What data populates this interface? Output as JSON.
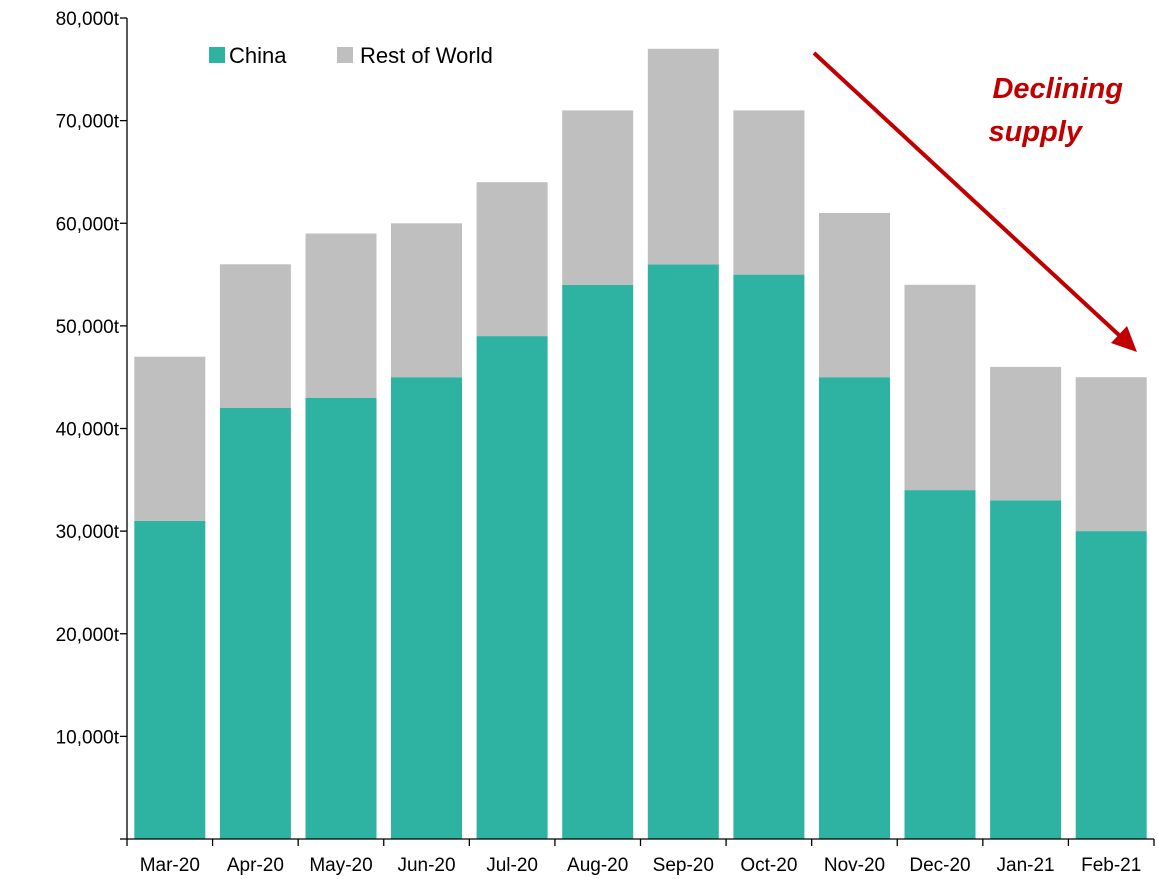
{
  "chart_data": {
    "type": "bar",
    "stacked": true,
    "categories": [
      "Mar-20",
      "Apr-20",
      "May-20",
      "Jun-20",
      "Jul-20",
      "Aug-20",
      "Sep-20",
      "Oct-20",
      "Nov-20",
      "Dec-20",
      "Jan-21",
      "Feb-21"
    ],
    "series": [
      {
        "name": "China",
        "color": "#2eb3a3",
        "values": [
          31000,
          42000,
          43000,
          45000,
          49000,
          54000,
          56000,
          55000,
          45000,
          34000,
          33000,
          30000
        ]
      },
      {
        "name": "Rest of World",
        "color": "#bfbfbf",
        "values": [
          16000,
          14000,
          16000,
          15000,
          15000,
          17000,
          21000,
          16000,
          16000,
          20000,
          13000,
          15000
        ]
      }
    ],
    "yticks": [
      "",
      "10,000t",
      "20,000t",
      "30,000t",
      "40,000t",
      "50,000t",
      "60,000t",
      "70,000t",
      "80,000t"
    ],
    "ylim": [
      0,
      80000
    ],
    "grid": false,
    "legend_position": "top-left",
    "annotation": {
      "lines": [
        "Declining",
        "supply"
      ],
      "color": "#c00000"
    },
    "title": "",
    "xlabel": "",
    "ylabel": ""
  }
}
